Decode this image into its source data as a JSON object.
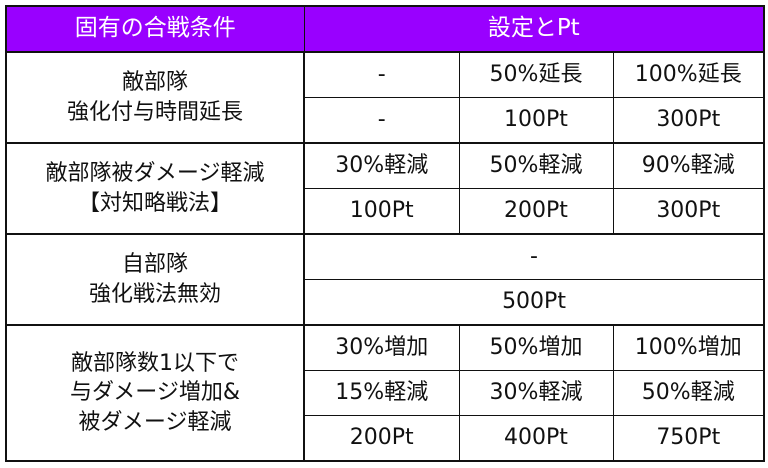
{
  "header": {
    "condition": "固有の合戦条件",
    "setting": "設定とPt"
  },
  "accent_color": "#9900ff",
  "rows": [
    {
      "condition": [
        "敵部隊",
        "強化付与時間延長"
      ],
      "settings": [
        [
          "-",
          "50%延長",
          "100%延長"
        ],
        [
          "-",
          "100Pt",
          "300Pt"
        ]
      ]
    },
    {
      "condition": [
        "敵部隊被ダメージ軽減",
        "【対知略戦法】"
      ],
      "settings": [
        [
          "30%軽減",
          "50%軽減",
          "90%軽減"
        ],
        [
          "100Pt",
          "200Pt",
          "300Pt"
        ]
      ]
    },
    {
      "condition": [
        "自部隊",
        "強化戦法無効"
      ],
      "settings": [
        [
          "-"
        ],
        [
          "500Pt"
        ]
      ]
    },
    {
      "condition": [
        "敵部隊数1以下で",
        "与ダメージ増加&",
        "被ダメージ軽減"
      ],
      "settings": [
        [
          "30%増加",
          "50%増加",
          "100%増加"
        ],
        [
          "15%軽減",
          "30%軽減",
          "50%軽減"
        ],
        [
          "200Pt",
          "400Pt",
          "750Pt"
        ]
      ]
    }
  ]
}
